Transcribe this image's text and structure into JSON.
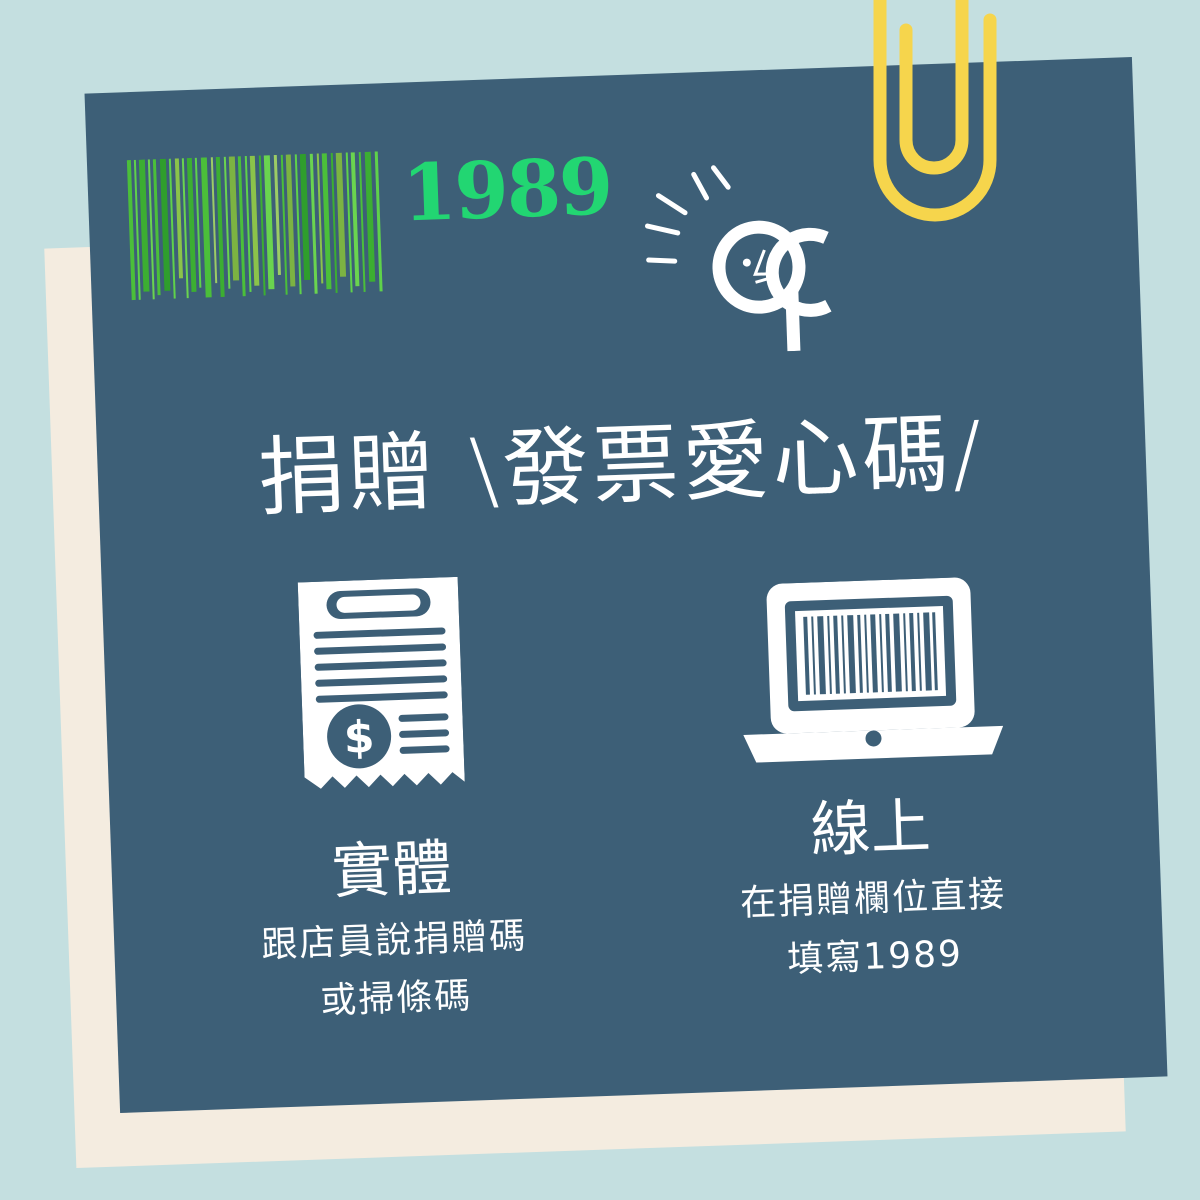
{
  "card": {
    "code_number": "1989",
    "title": "捐贈 \\發票愛心碼/"
  },
  "offline": {
    "heading": "實體",
    "desc_line1": "跟店員說捐贈碼",
    "desc_line2": "或掃條碼"
  },
  "online": {
    "heading": "線上",
    "desc_line1": "在捐贈欄位直接",
    "desc_line2": "填寫1989"
  },
  "colors": {
    "background": "#c4dfe0",
    "card": "#3d5f77",
    "paper": "#f4ece0",
    "accent_green": "#22d672",
    "clip_yellow": "#f6d54c"
  },
  "icons": [
    "barcode-icon",
    "logo-icon",
    "receipt-dollar-icon",
    "laptop-barcode-icon",
    "paperclip-icon"
  ]
}
